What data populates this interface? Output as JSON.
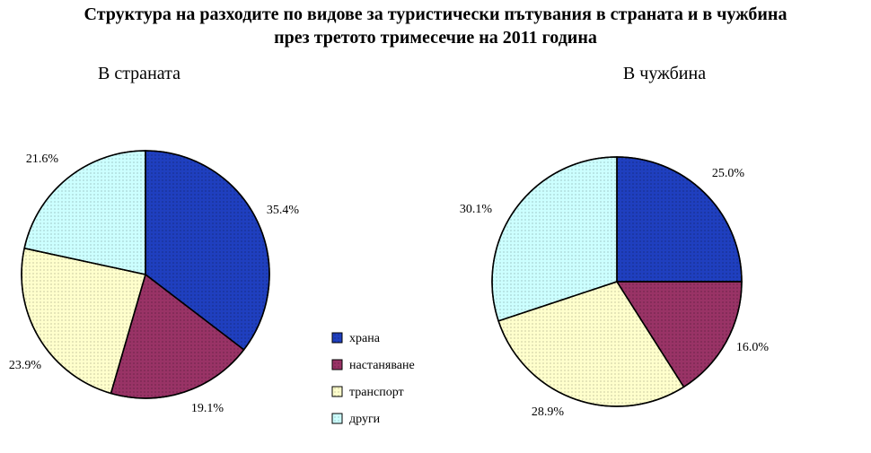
{
  "title_line1": "Структура на разходите по видове за туристически пътувания в страната и в чужбина",
  "title_line2": "през третото тримесечие на 2011 година",
  "chart_data": [
    {
      "type": "pie",
      "title": "В страната",
      "categories": [
        "храна",
        "настаняване",
        "транспорт",
        "други"
      ],
      "values": [
        35.4,
        19.1,
        23.9,
        21.6
      ],
      "value_labels": [
        "35.4%",
        "19.1%",
        "23.9%",
        "21.6%"
      ],
      "colors": [
        "#1f3fbf",
        "#993366",
        "#ffffcc",
        "#ccffff"
      ]
    },
    {
      "type": "pie",
      "title": "В чужбина",
      "categories": [
        "храна",
        "настаняване",
        "транспорт",
        "други"
      ],
      "values": [
        25.0,
        16.0,
        28.9,
        30.1
      ],
      "value_labels": [
        "25.0%",
        "16.0%",
        "28.9%",
        "30.1%"
      ],
      "colors": [
        "#1f3fbf",
        "#993366",
        "#ffffcc",
        "#ccffff"
      ]
    }
  ],
  "legend": {
    "position": "center-bottom",
    "items": [
      "храна",
      "настаняване",
      "транспорт",
      "други"
    ]
  }
}
